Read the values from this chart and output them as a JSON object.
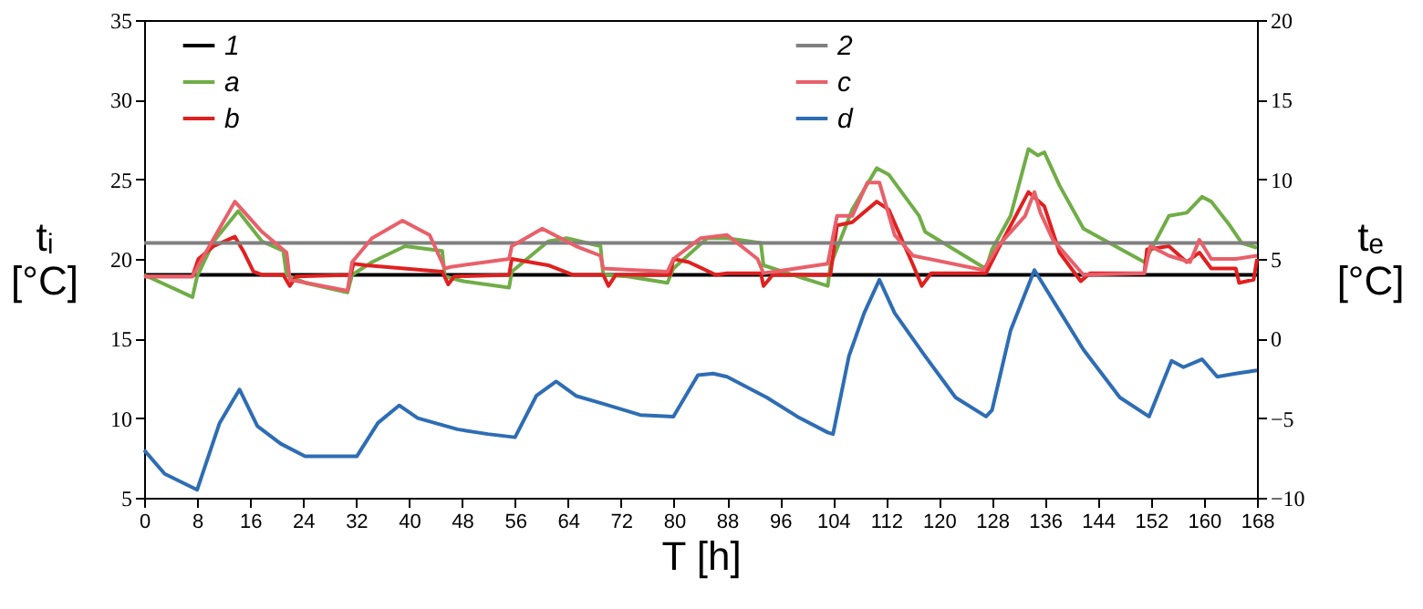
{
  "chart_data": {
    "type": "line",
    "xlabel": "T [h]",
    "ylabel": "tᵢ [°C]",
    "y2label": "tₑ [°C]",
    "xlim": [
      0,
      168
    ],
    "xticks": [
      0,
      8,
      16,
      24,
      32,
      40,
      48,
      56,
      64,
      72,
      80,
      88,
      96,
      104,
      112,
      120,
      128,
      136,
      144,
      152,
      160,
      168
    ],
    "ylim": [
      5,
      35
    ],
    "yticks": [
      5,
      10,
      15,
      20,
      25,
      30,
      35
    ],
    "y2lim": [
      -10,
      20
    ],
    "y2ticks": [
      -10,
      -5,
      0,
      5,
      10,
      15,
      20
    ],
    "grid": false,
    "legend": "top",
    "marker": "none",
    "line_style": "solid",
    "series": [
      {
        "name": "1",
        "color": "#000000",
        "x": [
          0,
          168
        ],
        "values": [
          19,
          19
        ]
      },
      {
        "name": "a",
        "color": "#70ad47",
        "x": [
          0,
          7.3,
          8,
          10.5,
          14.2,
          17.8,
          21,
          21.5,
          24.3,
          30.7,
          31.4,
          34.4,
          39.4,
          45,
          45.4,
          48.2,
          55.1,
          55.5,
          61,
          63.8,
          68.9,
          69.3,
          73,
          79,
          79.9,
          85,
          88,
          93.1,
          93.5,
          98.6,
          103.2,
          103.6,
          106.9,
          110.6,
          112.4,
          117,
          117.9,
          126.2,
          127.1,
          128,
          130.8,
          133.5,
          134.9,
          135.9,
          138.2,
          141.8,
          151,
          152.8,
          154.7,
          157.4,
          159.7,
          161.1,
          163.9,
          165.7,
          168
        ],
        "values": [
          19,
          17.6,
          18.9,
          21.1,
          23,
          21.1,
          20.5,
          19,
          18.5,
          17.9,
          19,
          19.8,
          20.8,
          20.5,
          18.9,
          18.6,
          18.2,
          19.2,
          21.1,
          21.3,
          20.8,
          19,
          18.9,
          18.5,
          19.4,
          21.3,
          21.3,
          21,
          19.6,
          18.9,
          18.3,
          19.6,
          23.1,
          25.7,
          25.3,
          22.7,
          21.7,
          19.6,
          19.4,
          20.6,
          22.7,
          26.9,
          26.5,
          26.7,
          24.6,
          21.9,
          19.8,
          21.2,
          22.7,
          22.9,
          23.9,
          23.6,
          22.1,
          21,
          20.7
        ]
      },
      {
        "name": "b",
        "color": "#e02020",
        "x": [
          0,
          7.3,
          8.2,
          10.5,
          13.7,
          15.1,
          16.5,
          17.8,
          21,
          22,
          22.9,
          31.2,
          31.6,
          33.5,
          45,
          45.9,
          46.8,
          55.1,
          55.5,
          61,
          64.7,
          69.3,
          70.1,
          71.2,
          79.4,
          79.9,
          82.2,
          86.3,
          88,
          93.1,
          93.5,
          94.9,
          103.6,
          104.6,
          106.9,
          110.6,
          112.4,
          116.1,
          117.4,
          118.8,
          127.1,
          128.9,
          133.5,
          135.9,
          138.2,
          141.4,
          142.8,
          151,
          151.4,
          154.7,
          157.4,
          159.3,
          161.1,
          164.8,
          165.3,
          167.5,
          168
        ],
        "values": [
          18.9,
          18.9,
          20,
          20.8,
          21.4,
          20.4,
          19.2,
          19,
          19,
          18.3,
          18.9,
          19,
          19.7,
          19.6,
          19.2,
          18.4,
          18.9,
          19,
          20,
          19.6,
          19,
          19,
          18.3,
          19,
          19,
          20,
          19.8,
          19,
          19.1,
          19.1,
          18.3,
          19,
          19,
          22.1,
          22.3,
          23.6,
          23.1,
          19.6,
          18.3,
          19.1,
          19.1,
          20.6,
          24.2,
          23.3,
          20.4,
          18.6,
          19.1,
          19.1,
          20.6,
          20.8,
          19.8,
          20.4,
          19.4,
          19.4,
          18.5,
          18.7,
          20
        ]
      },
      {
        "name": "2",
        "color": "#808080",
        "x": [
          0,
          168
        ],
        "values": [
          21,
          21
        ]
      },
      {
        "name": "c",
        "color": "#e8606a",
        "x": [
          0,
          7.3,
          8.2,
          13.7,
          17.8,
          21.5,
          22,
          30.7,
          31.4,
          34.4,
          39,
          43.1,
          45.4,
          46.3,
          55.1,
          55.5,
          60.1,
          65.2,
          68.9,
          69.3,
          79,
          79.9,
          84,
          88,
          92.6,
          93.5,
          103.2,
          104.6,
          106.9,
          109.2,
          111,
          113.3,
          116.1,
          126.7,
          128.9,
          133,
          134.4,
          135.3,
          137.2,
          141.8,
          151,
          151.9,
          154.7,
          157.9,
          159.3,
          161.1,
          164.8,
          168
        ],
        "values": [
          18.9,
          18.9,
          19.6,
          23.6,
          21.7,
          20.4,
          18.7,
          18,
          19.8,
          21.3,
          22.4,
          21.5,
          19.4,
          19.5,
          20,
          20.8,
          21.9,
          20.8,
          20.2,
          19.4,
          19.2,
          20,
          21.3,
          21.5,
          20,
          19.1,
          19.7,
          22.7,
          22.7,
          24.8,
          24.8,
          21.5,
          20.2,
          19.3,
          20.8,
          22.7,
          24.2,
          22.9,
          21.2,
          19,
          19.1,
          20.8,
          20.2,
          19.8,
          21.2,
          20,
          20,
          20.2
        ]
      },
      {
        "name": "d",
        "color": "#2e6db4",
        "axis": "y2",
        "x": [
          0,
          3.1,
          8,
          11.4,
          14.4,
          17.1,
          20.6,
          24.3,
          32.1,
          35.3,
          38.5,
          41.3,
          47.3,
          51.9,
          56,
          59.2,
          62.2,
          65.2,
          69.3,
          74.9,
          79.9,
          83.6,
          85.9,
          88,
          94,
          98.6,
          103.2,
          104,
          106.4,
          108.7,
          111,
          113.3,
          117.9,
          122.5,
          127.1,
          128,
          130.8,
          134.4,
          137.2,
          141.8,
          147.3,
          151.7,
          155.1,
          156.9,
          159.7,
          162,
          164.8,
          168
        ],
        "values": [
          -7,
          -8.5,
          -9.5,
          -5.3,
          -3.2,
          -5.5,
          -6.6,
          -7.4,
          -7.4,
          -5.3,
          -4.2,
          -5,
          -5.7,
          -6,
          -6.2,
          -3.6,
          -2.7,
          -3.6,
          -4.1,
          -4.8,
          -4.9,
          -2.3,
          -2.2,
          -2.4,
          -3.7,
          -4.9,
          -5.9,
          -6,
          -1.1,
          1.6,
          3.7,
          1.6,
          -1.1,
          -3.7,
          -4.9,
          -4.5,
          0.5,
          4.3,
          2.4,
          -0.7,
          -3.7,
          -4.9,
          -1.4,
          -1.8,
          -1.3,
          -2.4,
          -2.2,
          -2
        ]
      }
    ]
  }
}
